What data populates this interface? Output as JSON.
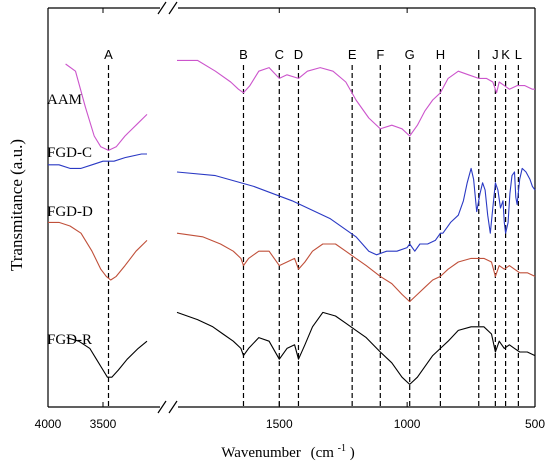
{
  "chart_data": {
    "type": "line",
    "xlabel": "Wavenumber",
    "xlabel_unit_prefix": "(cm",
    "xlabel_unit_exp": "-1",
    "xlabel_unit_suffix": ")",
    "ylabel": "Transmitance (a.u.)",
    "x_axis_reversed": true,
    "x_axis_break": true,
    "x_segments": [
      {
        "range": [
          4000,
          3000
        ]
      },
      {
        "range": [
          1900,
          500
        ]
      }
    ],
    "x_ticks": [
      {
        "value": 4000,
        "label": "4000"
      },
      {
        "value": 3500,
        "label": "3500"
      },
      {
        "value": 1500,
        "label": "1500"
      },
      {
        "value": 1000,
        "label": "1000"
      },
      {
        "value": 500,
        "label": "500"
      }
    ],
    "peaks": [
      {
        "label": "A",
        "x": 3450
      },
      {
        "label": "B",
        "x": 1640
      },
      {
        "label": "C",
        "x": 1500
      },
      {
        "label": "D",
        "x": 1425
      },
      {
        "label": "E",
        "x": 1215
      },
      {
        "label": "F",
        "x": 1105
      },
      {
        "label": "G",
        "x": 990
      },
      {
        "label": "H",
        "x": 870
      },
      {
        "label": "I",
        "x": 720
      },
      {
        "label": "J",
        "x": 655
      },
      {
        "label": "K",
        "x": 615
      },
      {
        "label": "L",
        "x": 565
      }
    ],
    "series": [
      {
        "name": "AAM",
        "color": "#cc55cc",
        "segments": [
          [
            [
              3840,
              0.9
            ],
            [
              3750,
              0.88
            ],
            [
              3660,
              0.78
            ],
            [
              3580,
              0.7
            ],
            [
              3520,
              0.67
            ],
            [
              3450,
              0.66
            ],
            [
              3380,
              0.67
            ],
            [
              3300,
              0.7
            ],
            [
              3200,
              0.73
            ],
            [
              3100,
              0.76
            ]
          ],
          [
            [
              1900,
              0.91
            ],
            [
              1820,
              0.91
            ],
            [
              1750,
              0.88
            ],
            [
              1690,
              0.85
            ],
            [
              1660,
              0.83
            ],
            [
              1640,
              0.82
            ],
            [
              1615,
              0.84
            ],
            [
              1580,
              0.88
            ],
            [
              1540,
              0.89
            ],
            [
              1500,
              0.86
            ],
            [
              1470,
              0.87
            ],
            [
              1425,
              0.86
            ],
            [
              1390,
              0.88
            ],
            [
              1340,
              0.89
            ],
            [
              1290,
              0.88
            ],
            [
              1240,
              0.85
            ],
            [
              1200,
              0.8
            ],
            [
              1150,
              0.75
            ],
            [
              1105,
              0.72
            ],
            [
              1060,
              0.73
            ],
            [
              1020,
              0.72
            ],
            [
              990,
              0.7
            ],
            [
              960,
              0.73
            ],
            [
              930,
              0.77
            ],
            [
              900,
              0.8
            ],
            [
              870,
              0.82
            ],
            [
              840,
              0.86
            ],
            [
              800,
              0.88
            ],
            [
              760,
              0.87
            ],
            [
              720,
              0.86
            ],
            [
              690,
              0.86
            ],
            [
              665,
              0.85
            ],
            [
              650,
              0.82
            ],
            [
              640,
              0.85
            ],
            [
              620,
              0.84
            ],
            [
              600,
              0.83
            ],
            [
              570,
              0.84
            ],
            [
              540,
              0.84
            ],
            [
              510,
              0.83
            ],
            [
              500,
              0.83
            ]
          ]
        ]
      },
      {
        "name": "FGD-C",
        "color": "#2a39c4",
        "segments": [
          [
            [
              4000,
              0.62
            ],
            [
              3900,
              0.62
            ],
            [
              3800,
              0.61
            ],
            [
              3700,
              0.61
            ],
            [
              3600,
              0.62
            ],
            [
              3500,
              0.63
            ],
            [
              3400,
              0.63
            ],
            [
              3300,
              0.64
            ],
            [
              3150,
              0.65
            ],
            [
              3100,
              0.65
            ]
          ],
          [
            [
              1900,
              0.6
            ],
            [
              1750,
              0.59
            ],
            [
              1600,
              0.56
            ],
            [
              1450,
              0.52
            ],
            [
              1300,
              0.47
            ],
            [
              1200,
              0.42
            ],
            [
              1150,
              0.38
            ],
            [
              1120,
              0.37
            ],
            [
              1080,
              0.38
            ],
            [
              1040,
              0.38
            ],
            [
              1000,
              0.39
            ],
            [
              990,
              0.4
            ],
            [
              970,
              0.38
            ],
            [
              950,
              0.4
            ],
            [
              920,
              0.4
            ],
            [
              890,
              0.41
            ],
            [
              870,
              0.43
            ],
            [
              860,
              0.43
            ],
            [
              830,
              0.46
            ],
            [
              800,
              0.48
            ],
            [
              780,
              0.52
            ],
            [
              765,
              0.57
            ],
            [
              750,
              0.61
            ],
            [
              740,
              0.58
            ],
            [
              728,
              0.49
            ],
            [
              715,
              0.54
            ],
            [
              705,
              0.57
            ],
            [
              695,
              0.55
            ],
            [
              685,
              0.48
            ],
            [
              675,
              0.43
            ],
            [
              665,
              0.5
            ],
            [
              655,
              0.57
            ],
            [
              645,
              0.55
            ],
            [
              635,
              0.5
            ],
            [
              625,
              0.52
            ],
            [
              620,
              0.46
            ],
            [
              615,
              0.43
            ],
            [
              605,
              0.46
            ],
            [
              598,
              0.54
            ],
            [
              590,
              0.59
            ],
            [
              580,
              0.6
            ],
            [
              575,
              0.53
            ],
            [
              570,
              0.51
            ],
            [
              560,
              0.58
            ],
            [
              550,
              0.61
            ],
            [
              535,
              0.6
            ],
            [
              520,
              0.58
            ],
            [
              510,
              0.56
            ],
            [
              500,
              0.55
            ]
          ]
        ]
      },
      {
        "name": "FGD-D",
        "color": "#c0503a",
        "segments": [
          [
            [
              4000,
              0.46
            ],
            [
              3900,
              0.46
            ],
            [
              3800,
              0.45
            ],
            [
              3700,
              0.43
            ],
            [
              3600,
              0.38
            ],
            [
              3520,
              0.33
            ],
            [
              3470,
              0.31
            ],
            [
              3430,
              0.3
            ],
            [
              3380,
              0.31
            ],
            [
              3300,
              0.34
            ],
            [
              3200,
              0.38
            ],
            [
              3100,
              0.41
            ]
          ],
          [
            [
              1900,
              0.43
            ],
            [
              1800,
              0.42
            ],
            [
              1730,
              0.4
            ],
            [
              1680,
              0.38
            ],
            [
              1650,
              0.36
            ],
            [
              1640,
              0.34
            ],
            [
              1620,
              0.36
            ],
            [
              1580,
              0.38
            ],
            [
              1540,
              0.38
            ],
            [
              1500,
              0.34
            ],
            [
              1470,
              0.35
            ],
            [
              1440,
              0.36
            ],
            [
              1425,
              0.33
            ],
            [
              1400,
              0.35
            ],
            [
              1370,
              0.38
            ],
            [
              1330,
              0.4
            ],
            [
              1280,
              0.4
            ],
            [
              1240,
              0.38
            ],
            [
              1200,
              0.36
            ],
            [
              1160,
              0.34
            ],
            [
              1105,
              0.31
            ],
            [
              1060,
              0.29
            ],
            [
              1020,
              0.26
            ],
            [
              990,
              0.24
            ],
            [
              960,
              0.26
            ],
            [
              930,
              0.28
            ],
            [
              900,
              0.3
            ],
            [
              870,
              0.31
            ],
            [
              840,
              0.33
            ],
            [
              800,
              0.35
            ],
            [
              750,
              0.36
            ],
            [
              700,
              0.36
            ],
            [
              670,
              0.35
            ],
            [
              655,
              0.31
            ],
            [
              640,
              0.34
            ],
            [
              620,
              0.33
            ],
            [
              600,
              0.34
            ],
            [
              580,
              0.33
            ],
            [
              560,
              0.32
            ],
            [
              530,
              0.32
            ],
            [
              500,
              0.31
            ]
          ]
        ]
      },
      {
        "name": "FGD-R",
        "color": "#000000",
        "segments": [
          [
            [
              3830,
              0.14
            ],
            [
              3720,
              0.13
            ],
            [
              3620,
              0.11
            ],
            [
              3560,
              0.08
            ],
            [
              3500,
              0.05
            ],
            [
              3460,
              0.03
            ],
            [
              3420,
              0.03
            ],
            [
              3360,
              0.05
            ],
            [
              3280,
              0.08
            ],
            [
              3180,
              0.11
            ],
            [
              3100,
              0.13
            ]
          ],
          [
            [
              1900,
              0.21
            ],
            [
              1820,
              0.19
            ],
            [
              1760,
              0.17
            ],
            [
              1720,
              0.15
            ],
            [
              1680,
              0.13
            ],
            [
              1650,
              0.11
            ],
            [
              1640,
              0.09
            ],
            [
              1620,
              0.11
            ],
            [
              1580,
              0.14
            ],
            [
              1540,
              0.13
            ],
            [
              1500,
              0.08
            ],
            [
              1470,
              0.11
            ],
            [
              1440,
              0.12
            ],
            [
              1425,
              0.08
            ],
            [
              1400,
              0.12
            ],
            [
              1370,
              0.17
            ],
            [
              1330,
              0.21
            ],
            [
              1280,
              0.2
            ],
            [
              1240,
              0.18
            ],
            [
              1200,
              0.16
            ],
            [
              1160,
              0.14
            ],
            [
              1105,
              0.1
            ],
            [
              1060,
              0.07
            ],
            [
              1020,
              0.03
            ],
            [
              990,
              0.01
            ],
            [
              960,
              0.03
            ],
            [
              930,
              0.06
            ],
            [
              900,
              0.09
            ],
            [
              870,
              0.11
            ],
            [
              840,
              0.13
            ],
            [
              800,
              0.16
            ],
            [
              750,
              0.17
            ],
            [
              700,
              0.17
            ],
            [
              670,
              0.15
            ],
            [
              655,
              0.1
            ],
            [
              640,
              0.13
            ],
            [
              620,
              0.11
            ],
            [
              600,
              0.12
            ],
            [
              580,
              0.11
            ],
            [
              560,
              0.1
            ],
            [
              530,
              0.1
            ],
            [
              500,
              0.09
            ]
          ]
        ]
      }
    ]
  }
}
